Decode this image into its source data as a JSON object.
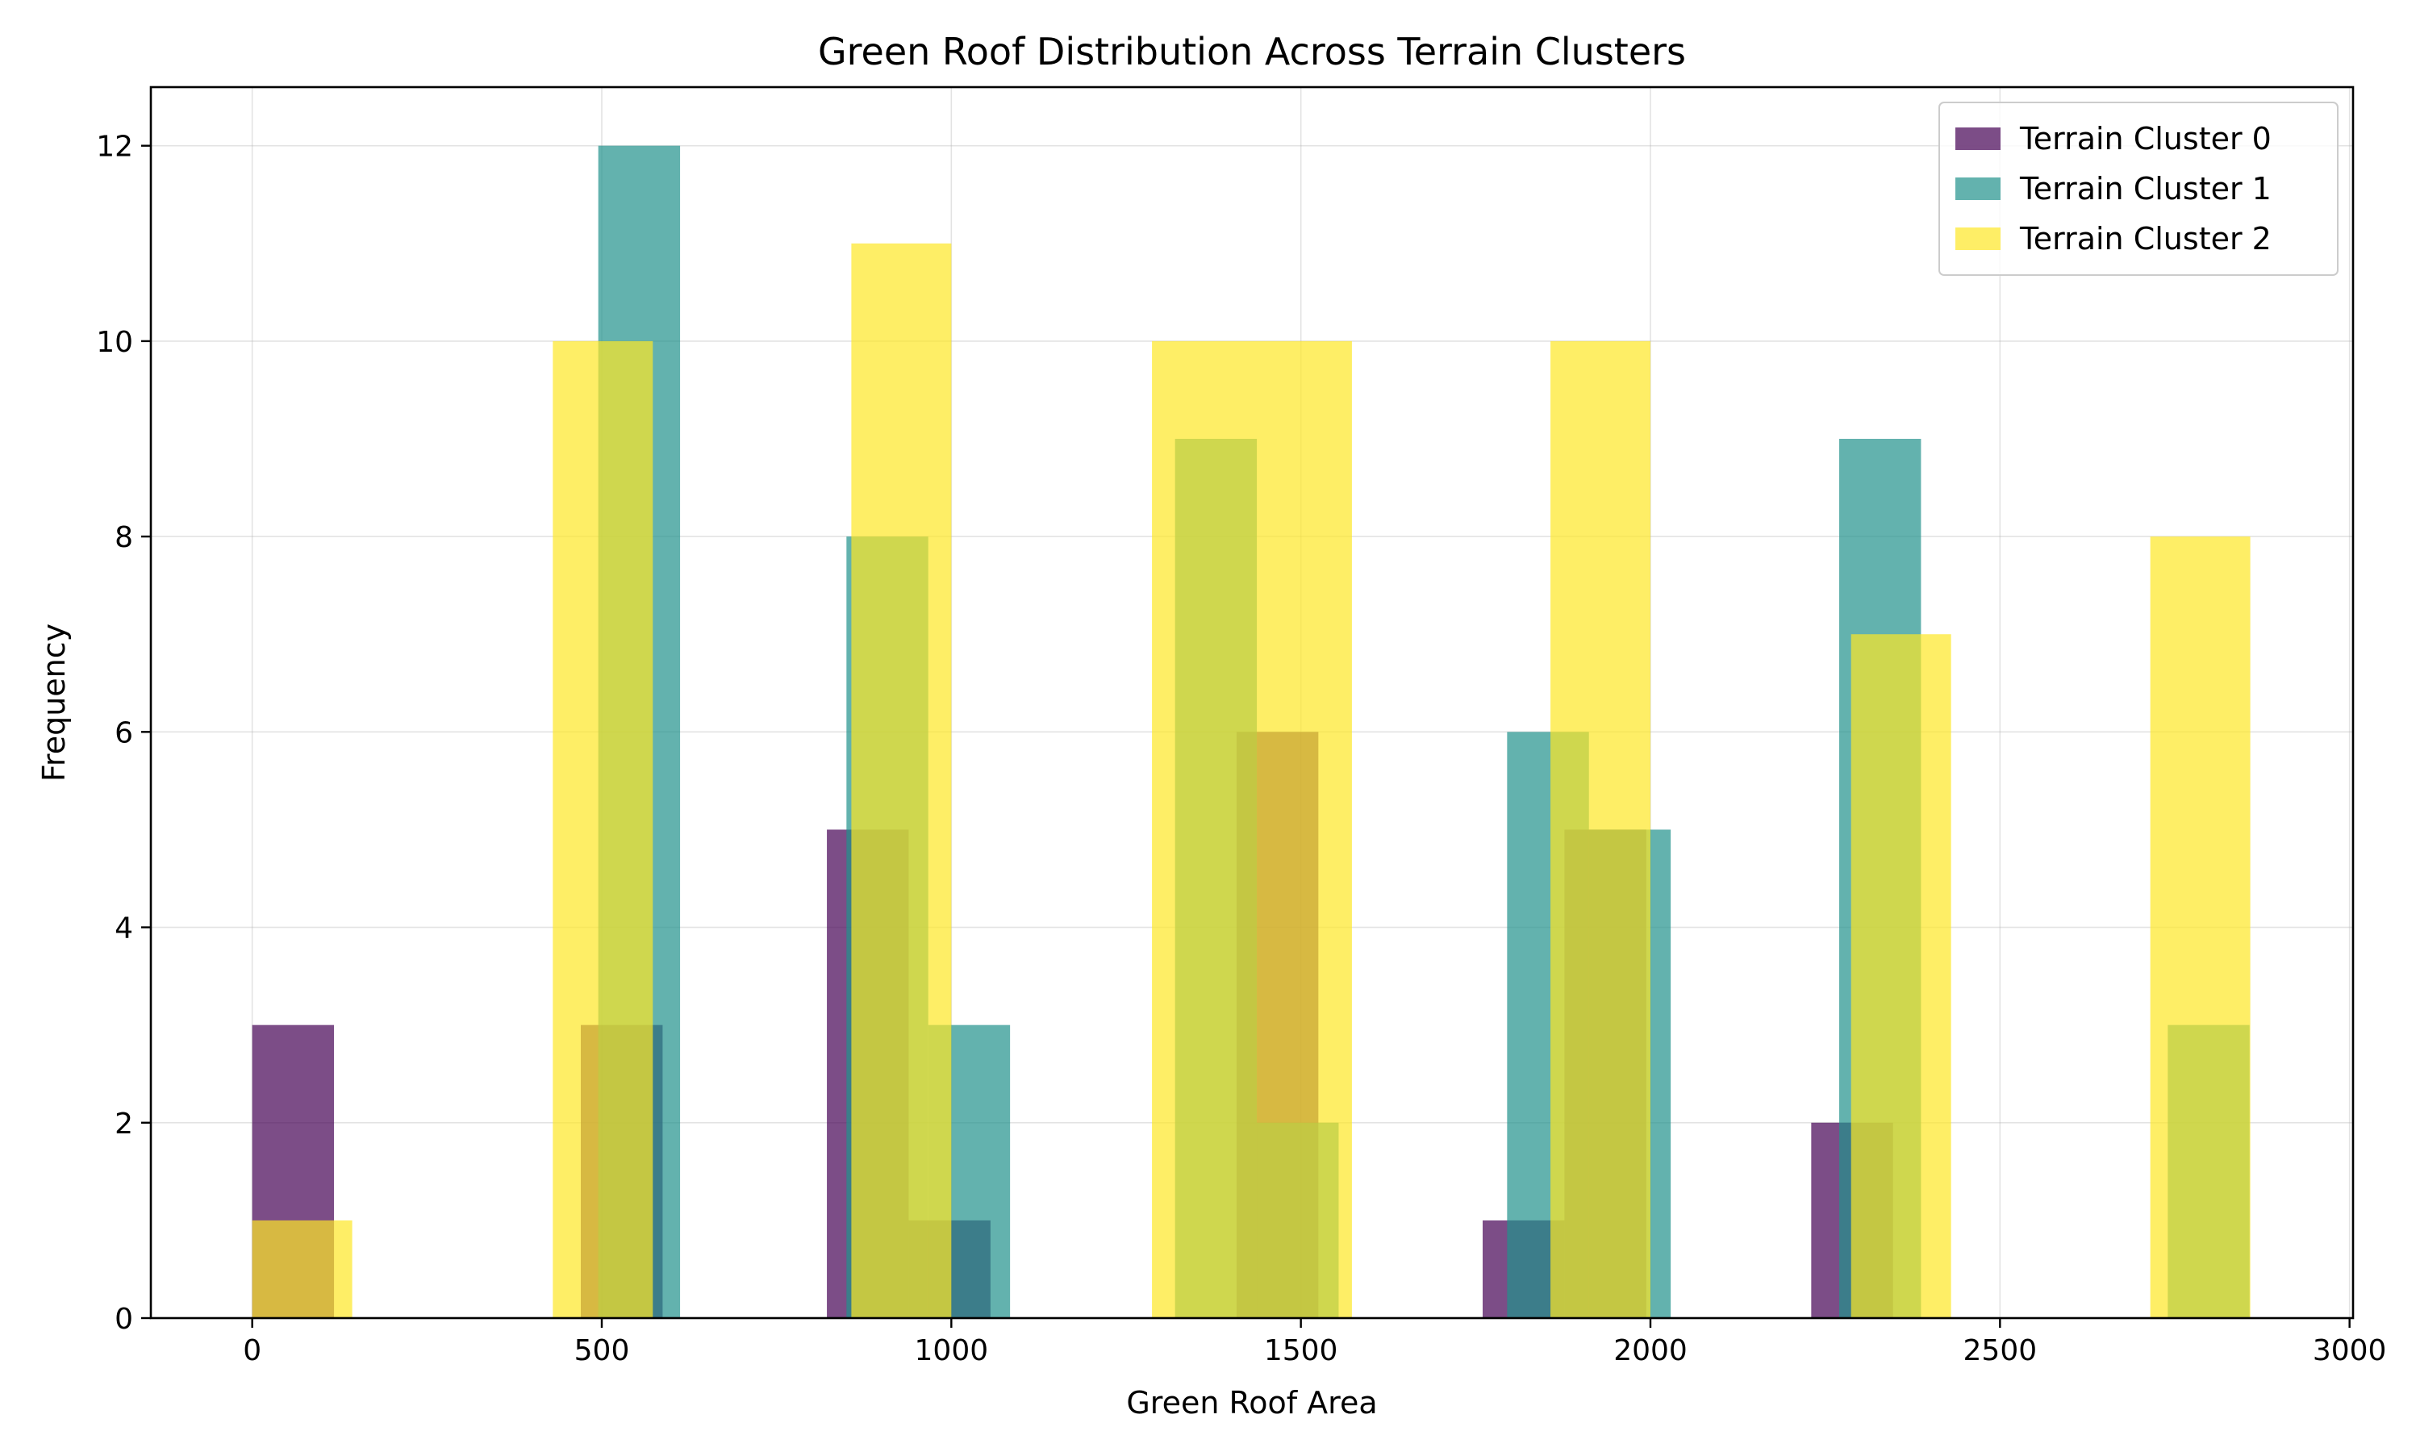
{
  "chart_data": {
    "type": "bar",
    "title": "Green Roof Distribution Across Terrain Clusters",
    "xlabel": "Green Roof Area",
    "ylabel": "Frequency",
    "xlim": [
      -145,
      3005
    ],
    "ylim": [
      0,
      12.6
    ],
    "xticks": [
      0,
      500,
      1000,
      1500,
      2000,
      2500,
      3000
    ],
    "yticks": [
      0,
      2,
      4,
      6,
      8,
      10,
      12
    ],
    "grid": true,
    "legend_position": "top-right",
    "series": [
      {
        "name": "Terrain Cluster 0",
        "color": "#440154",
        "opacity": 0.7,
        "bins": [
          {
            "x0": 0,
            "x1": 117,
            "value": 3
          },
          {
            "x0": 470,
            "x1": 587,
            "value": 3
          },
          {
            "x0": 822,
            "x1": 939,
            "value": 5
          },
          {
            "x0": 939,
            "x1": 1056,
            "value": 1
          },
          {
            "x0": 1408,
            "x1": 1525,
            "value": 6
          },
          {
            "x0": 1760,
            "x1": 1877,
            "value": 1
          },
          {
            "x0": 1877,
            "x1": 1994,
            "value": 5
          },
          {
            "x0": 2230,
            "x1": 2347,
            "value": 2
          }
        ]
      },
      {
        "name": "Terrain Cluster 1",
        "color": "#21918c",
        "opacity": 0.7,
        "bins": [
          {
            "x0": 495,
            "x1": 612,
            "value": 12
          },
          {
            "x0": 850,
            "x1": 967,
            "value": 8
          },
          {
            "x0": 967,
            "x1": 1084,
            "value": 3
          },
          {
            "x0": 1320,
            "x1": 1437,
            "value": 9
          },
          {
            "x0": 1437,
            "x1": 1554,
            "value": 2
          },
          {
            "x0": 1795,
            "x1": 1912,
            "value": 6
          },
          {
            "x0": 1912,
            "x1": 2029,
            "value": 5
          },
          {
            "x0": 2270,
            "x1": 2387,
            "value": 9
          },
          {
            "x0": 2740,
            "x1": 2857,
            "value": 3
          }
        ]
      },
      {
        "name": "Terrain Cluster 2",
        "color": "#fde725",
        "opacity": 0.7,
        "bins": [
          {
            "x0": 0,
            "x1": 143,
            "value": 1
          },
          {
            "x0": 430,
            "x1": 573,
            "value": 10
          },
          {
            "x0": 857,
            "x1": 1000,
            "value": 11
          },
          {
            "x0": 1287,
            "x1": 1430,
            "value": 10
          },
          {
            "x0": 1430,
            "x1": 1573,
            "value": 10
          },
          {
            "x0": 1857,
            "x1": 2000,
            "value": 10
          },
          {
            "x0": 2287,
            "x1": 2430,
            "value": 7
          },
          {
            "x0": 2715,
            "x1": 2858,
            "value": 8
          }
        ]
      }
    ]
  }
}
